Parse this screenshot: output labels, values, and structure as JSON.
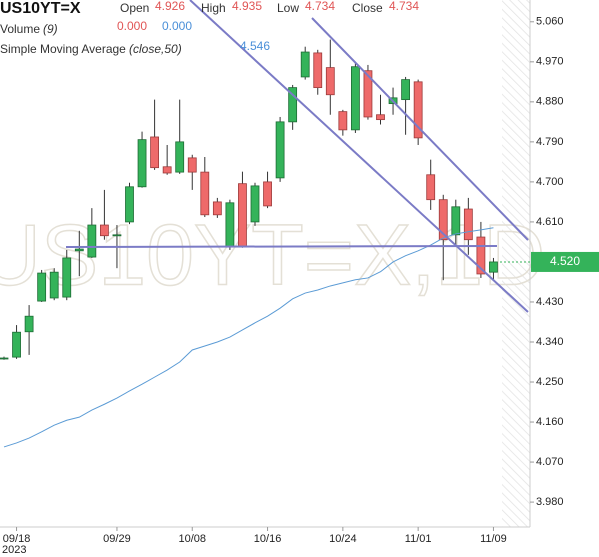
{
  "chart_data": {
    "type": "candlestick",
    "symbol": "US10YT=X",
    "watermark": "US10YT=X,1D",
    "legend": {
      "open_label": "Open",
      "open": "4.926",
      "high_label": "High",
      "high": "4.935",
      "low_label": "Low",
      "low": "4.734",
      "close_label": "Close",
      "close": "4.734",
      "volume_label": "Volume",
      "volume_period": "(9)",
      "volume_a": "0.000",
      "volume_b": "0.000",
      "sma_label": "Simple Moving Average",
      "sma_params": "(close,50)",
      "sma_value": "4.546"
    },
    "categories": [
      null,
      "09/18",
      null,
      null,
      null,
      null,
      null,
      null,
      null,
      "09/29",
      null,
      null,
      null,
      null,
      null,
      "10/08",
      null,
      null,
      null,
      null,
      null,
      "10/16",
      null,
      null,
      null,
      null,
      null,
      "10/24",
      null,
      null,
      null,
      null,
      null,
      "11/01",
      null,
      null,
      null,
      null,
      null,
      "11/09"
    ],
    "year_label": "2023",
    "open": [
      4.304,
      4.306,
      4.363,
      4.432,
      4.439,
      4.441,
      4.545,
      4.531,
      4.603,
      4.581,
      4.61,
      4.689,
      4.801,
      4.734,
      4.722,
      4.754,
      4.722,
      4.655,
      4.554,
      4.696,
      4.61,
      4.7,
      4.709,
      4.835,
      4.936,
      4.99,
      4.957,
      4.858,
      4.817,
      4.95,
      4.851,
      4.876,
      4.885,
      4.925,
      4.716,
      4.66,
      4.581,
      4.639,
      4.576,
      4.497
    ],
    "high": [
      4.307,
      4.378,
      4.423,
      4.502,
      4.506,
      4.547,
      4.59,
      4.641,
      4.682,
      4.603,
      4.698,
      4.813,
      4.885,
      4.783,
      4.885,
      4.761,
      4.756,
      4.664,
      4.66,
      4.723,
      4.698,
      4.723,
      4.846,
      4.918,
      5.004,
      4.997,
      5.02,
      4.862,
      4.968,
      4.963,
      4.896,
      4.912,
      4.936,
      4.93,
      4.75,
      4.671,
      4.66,
      4.664,
      4.61,
      4.529
    ],
    "low": [
      4.3,
      4.302,
      4.311,
      4.43,
      4.434,
      4.434,
      4.488,
      4.529,
      4.57,
      4.506,
      4.605,
      4.687,
      4.727,
      4.716,
      4.718,
      4.682,
      4.621,
      4.619,
      4.547,
      4.552,
      4.601,
      4.641,
      4.7,
      4.817,
      4.93,
      4.896,
      4.851,
      4.804,
      4.81,
      4.84,
      4.829,
      4.851,
      4.806,
      4.783,
      4.637,
      4.479,
      4.558,
      4.536,
      4.484,
      4.479
    ],
    "close": [
      4.304,
      4.362,
      4.398,
      4.495,
      4.497,
      4.529,
      4.549,
      4.603,
      4.579,
      4.581,
      4.689,
      4.795,
      4.732,
      4.72,
      4.79,
      4.722,
      4.626,
      4.626,
      4.653,
      4.556,
      4.691,
      4.646,
      4.835,
      4.912,
      4.992,
      4.912,
      4.896,
      4.817,
      4.959,
      4.846,
      4.84,
      4.889,
      4.93,
      4.799,
      4.66,
      4.57,
      4.644,
      4.57,
      4.493,
      4.52
    ],
    "sma": {
      "name": "Simple Moving Average",
      "color": "#5b9bd5",
      "values": [
        4.104,
        4.113,
        4.124,
        4.138,
        4.153,
        4.164,
        4.171,
        4.187,
        4.2,
        4.214,
        4.23,
        4.245,
        4.261,
        4.277,
        4.295,
        4.322,
        4.331,
        4.34,
        4.351,
        4.367,
        4.383,
        4.398,
        4.416,
        4.437,
        4.45,
        4.457,
        4.466,
        4.473,
        4.48,
        4.484,
        4.498,
        4.52,
        4.534,
        4.545,
        4.558,
        4.574,
        4.583,
        4.588,
        4.592,
        4.597
      ]
    },
    "up_color": "#34b35a",
    "down_color": "#ee6a6a",
    "last_price": {
      "value": 4.52,
      "label": "4.520"
    },
    "ylim": [
      3.924,
      5.109
    ],
    "yticks": [
      {
        "value": 3.98,
        "label": "3.980"
      },
      {
        "value": 4.07,
        "label": "4.070"
      },
      {
        "value": 4.16,
        "label": "4.160"
      },
      {
        "value": 4.25,
        "label": "4.250"
      },
      {
        "value": 4.34,
        "label": "4.340"
      },
      {
        "value": 4.43,
        "label": "4.430"
      },
      {
        "value": 4.61,
        "label": "4.610"
      },
      {
        "value": 4.7,
        "label": "4.700"
      },
      {
        "value": 4.79,
        "label": "4.790"
      },
      {
        "value": 4.88,
        "label": "4.880"
      },
      {
        "value": 4.97,
        "label": "4.970"
      },
      {
        "value": 5.06,
        "label": "5.060"
      }
    ]
  }
}
